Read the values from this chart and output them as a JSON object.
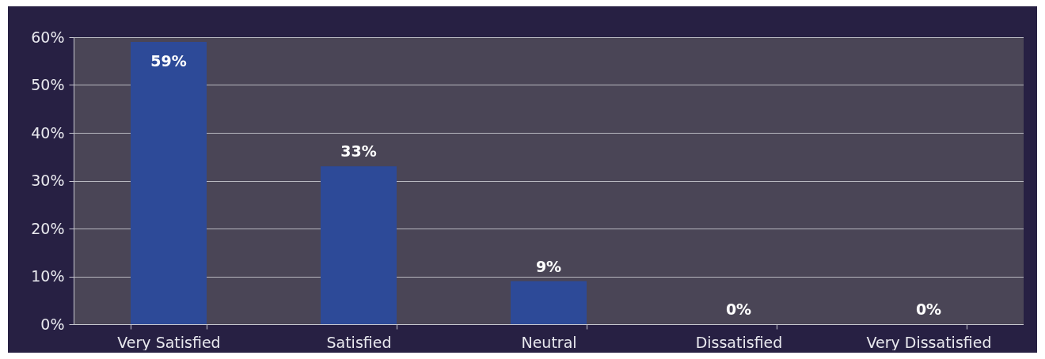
{
  "chart_data": {
    "type": "bar",
    "categories": [
      "Very Satisfied",
      "Satisfied",
      "Neutral",
      "Dissatisfied",
      "Very Dissatisfied"
    ],
    "values": [
      59,
      33,
      9,
      0,
      0
    ],
    "value_labels": [
      "59%",
      "33%",
      "9%",
      "0%",
      "0%"
    ],
    "color": "#2d4a98",
    "ylim": [
      0,
      60
    ],
    "yticks": [
      {
        "value": 0,
        "label": "0%"
      },
      {
        "value": 10,
        "label": "10%"
      },
      {
        "value": 20,
        "label": "20%"
      },
      {
        "value": 30,
        "label": "30%"
      },
      {
        "value": 40,
        "label": "40%"
      },
      {
        "value": 50,
        "label": "50%"
      },
      {
        "value": 60,
        "label": "60%"
      }
    ],
    "grid": "y"
  }
}
